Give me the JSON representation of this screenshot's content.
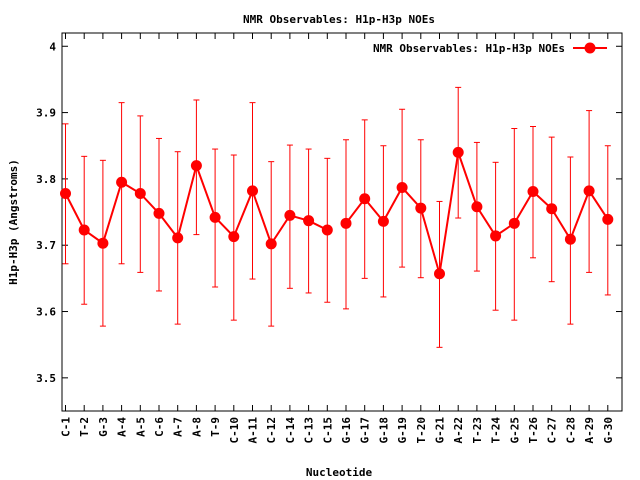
{
  "chart_data": {
    "type": "line",
    "title": "NMR Observables: H1p-H3p NOEs",
    "xlabel": "Nucleotide",
    "ylabel": "H1p-H3p (Angstroms)",
    "ylim": [
      3.45,
      4.02
    ],
    "yticks": [
      "3.5",
      "3.6",
      "3.7",
      "3.8",
      "3.9",
      "4"
    ],
    "legend": {
      "position": "top-right",
      "label": "NMR Observables: H1p-H3p NOEs"
    },
    "grid": false,
    "colors": {
      "series": "#ff0000",
      "axis": "#000000"
    },
    "categories": [
      "C-1",
      "T-2",
      "G-3",
      "A-4",
      "A-5",
      "C-6",
      "A-7",
      "A-8",
      "T-9",
      "C-10",
      "A-11",
      "C-12",
      "C-14",
      "C-13",
      "C-15",
      "G-16",
      "G-17",
      "G-18",
      "G-19",
      "T-20",
      "G-21",
      "A-22",
      "T-23",
      "T-24",
      "G-25",
      "T-26",
      "C-27",
      "C-28",
      "A-29",
      "G-30"
    ],
    "series": [
      {
        "name": "NMR Observables: H1p-H3p NOEs",
        "segments": [
          [
            0,
            14
          ],
          [
            15,
            29
          ]
        ],
        "values": [
          3.778,
          3.723,
          3.703,
          3.795,
          3.778,
          3.748,
          3.711,
          3.82,
          3.742,
          3.713,
          3.782,
          3.702,
          3.745,
          3.737,
          3.723,
          3.733,
          3.77,
          3.736,
          3.787,
          3.756,
          3.657,
          3.84,
          3.758,
          3.714,
          3.733,
          3.781,
          3.755,
          3.709,
          3.782,
          3.739
        ],
        "err_low": [
          3.672,
          3.611,
          3.578,
          3.672,
          3.659,
          3.631,
          3.581,
          3.716,
          3.637,
          3.587,
          3.649,
          3.578,
          3.635,
          3.628,
          3.614,
          3.604,
          3.65,
          3.622,
          3.667,
          3.651,
          3.546,
          3.741,
          3.661,
          3.602,
          3.587,
          3.681,
          3.645,
          3.581,
          3.659,
          3.625
        ],
        "err_high": [
          3.883,
          3.834,
          3.828,
          3.915,
          3.895,
          3.861,
          3.841,
          3.919,
          3.845,
          3.836,
          3.915,
          3.826,
          3.851,
          3.845,
          3.831,
          3.859,
          3.889,
          3.85,
          3.905,
          3.859,
          3.766,
          3.938,
          3.855,
          3.825,
          3.876,
          3.879,
          3.863,
          3.833,
          3.903,
          3.85
        ]
      }
    ]
  }
}
